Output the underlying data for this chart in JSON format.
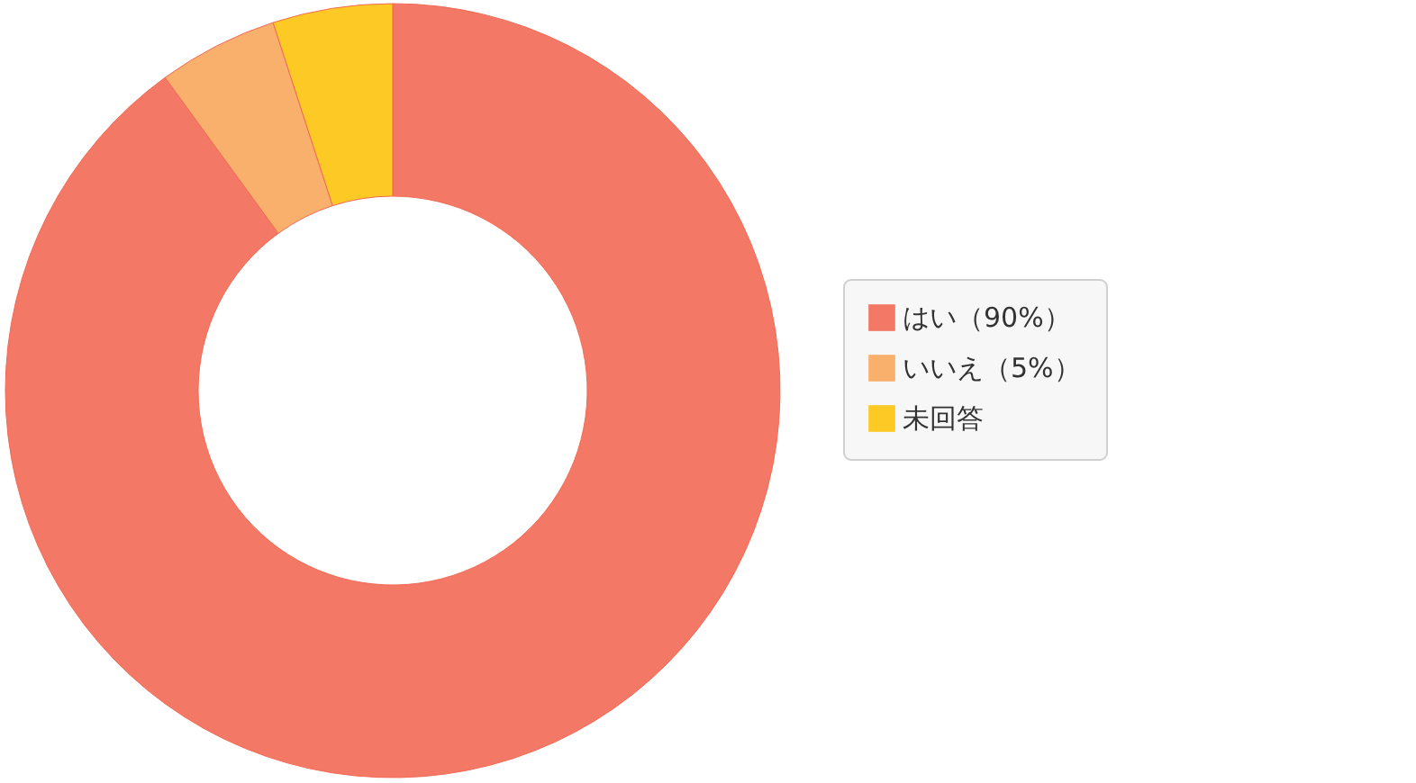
{
  "chart_data": {
    "type": "donut",
    "categories": [
      "はい（90%）",
      "いいえ（5%）",
      "未回答"
    ],
    "values": [
      90,
      5,
      5
    ],
    "colors": [
      "#f47866",
      "#f9b06c",
      "#fcc925"
    ],
    "legend": "right"
  }
}
